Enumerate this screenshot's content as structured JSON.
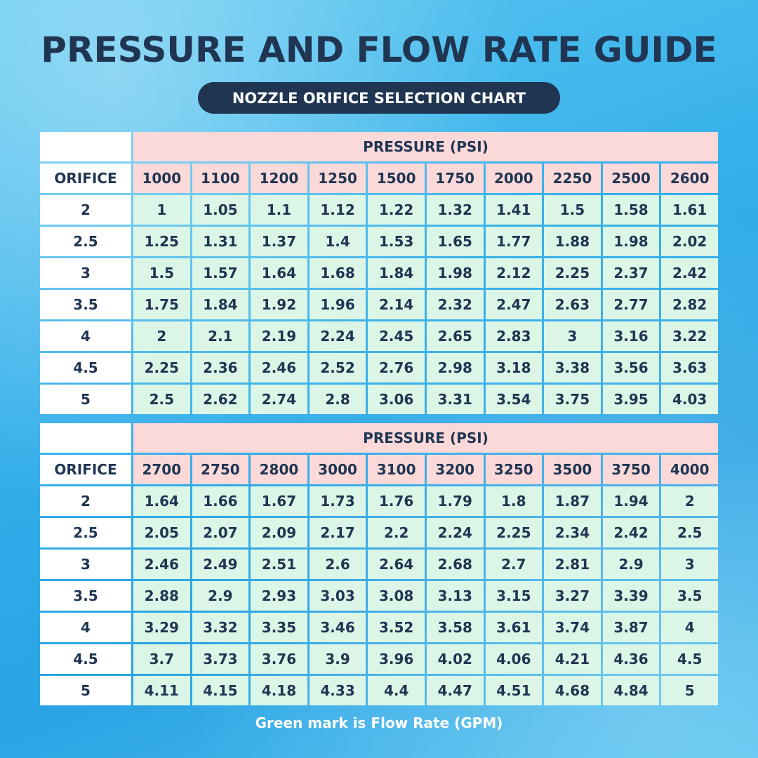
{
  "title": "PRESSURE AND FLOW RATE GUIDE",
  "subtitle": "NOZZLE ORIFICE SELECTION CHART",
  "footer": "Green mark is Flow Rate (GPM)",
  "colors": {
    "title": "#1f3552",
    "pressure_header": "#fbd9d9",
    "flow_cell": "#dbf6e6",
    "orifice_cell": "#ffffff"
  },
  "chart_data": [
    {
      "type": "table",
      "group_header": "PRESSURE (PSI)",
      "row_header_label": "ORIFICE",
      "columns": [
        "1000",
        "1100",
        "1200",
        "1250",
        "1500",
        "1750",
        "2000",
        "2250",
        "2500",
        "2600"
      ],
      "rows": [
        {
          "orifice": "2",
          "values": [
            "1",
            "1.05",
            "1.1",
            "1.12",
            "1.22",
            "1.32",
            "1.41",
            "1.5",
            "1.58",
            "1.61"
          ]
        },
        {
          "orifice": "2.5",
          "values": [
            "1.25",
            "1.31",
            "1.37",
            "1.4",
            "1.53",
            "1.65",
            "1.77",
            "1.88",
            "1.98",
            "2.02"
          ]
        },
        {
          "orifice": "3",
          "values": [
            "1.5",
            "1.57",
            "1.64",
            "1.68",
            "1.84",
            "1.98",
            "2.12",
            "2.25",
            "2.37",
            "2.42"
          ]
        },
        {
          "orifice": "3.5",
          "values": [
            "1.75",
            "1.84",
            "1.92",
            "1.96",
            "2.14",
            "2.32",
            "2.47",
            "2.63",
            "2.77",
            "2.82"
          ]
        },
        {
          "orifice": "4",
          "values": [
            "2",
            "2.1",
            "2.19",
            "2.24",
            "2.45",
            "2.65",
            "2.83",
            "3",
            "3.16",
            "3.22"
          ]
        },
        {
          "orifice": "4.5",
          "values": [
            "2.25",
            "2.36",
            "2.46",
            "2.52",
            "2.76",
            "2.98",
            "3.18",
            "3.38",
            "3.56",
            "3.63"
          ]
        },
        {
          "orifice": "5",
          "values": [
            "2.5",
            "2.62",
            "2.74",
            "2.8",
            "3.06",
            "3.31",
            "3.54",
            "3.75",
            "3.95",
            "4.03"
          ]
        }
      ]
    },
    {
      "type": "table",
      "group_header": "PRESSURE (PSI)",
      "row_header_label": "ORIFICE",
      "columns": [
        "2700",
        "2750",
        "2800",
        "3000",
        "3100",
        "3200",
        "3250",
        "3500",
        "3750",
        "4000"
      ],
      "rows": [
        {
          "orifice": "2",
          "values": [
            "1.64",
            "1.66",
            "1.67",
            "1.73",
            "1.76",
            "1.79",
            "1.8",
            "1.87",
            "1.94",
            "2"
          ]
        },
        {
          "orifice": "2.5",
          "values": [
            "2.05",
            "2.07",
            "2.09",
            "2.17",
            "2.2",
            "2.24",
            "2.25",
            "2.34",
            "2.42",
            "2.5"
          ]
        },
        {
          "orifice": "3",
          "values": [
            "2.46",
            "2.49",
            "2.51",
            "2.6",
            "2.64",
            "2.68",
            "2.7",
            "2.81",
            "2.9",
            "3"
          ]
        },
        {
          "orifice": "3.5",
          "values": [
            "2.88",
            "2.9",
            "2.93",
            "3.03",
            "3.08",
            "3.13",
            "3.15",
            "3.27",
            "3.39",
            "3.5"
          ]
        },
        {
          "orifice": "4",
          "values": [
            "3.29",
            "3.32",
            "3.35",
            "3.46",
            "3.52",
            "3.58",
            "3.61",
            "3.74",
            "3.87",
            "4"
          ]
        },
        {
          "orifice": "4.5",
          "values": [
            "3.7",
            "3.73",
            "3.76",
            "3.9",
            "3.96",
            "4.02",
            "4.06",
            "4.21",
            "4.36",
            "4.5"
          ]
        },
        {
          "orifice": "5",
          "values": [
            "4.11",
            "4.15",
            "4.18",
            "4.33",
            "4.4",
            "4.47",
            "4.51",
            "4.68",
            "4.84",
            "5"
          ]
        }
      ]
    }
  ]
}
